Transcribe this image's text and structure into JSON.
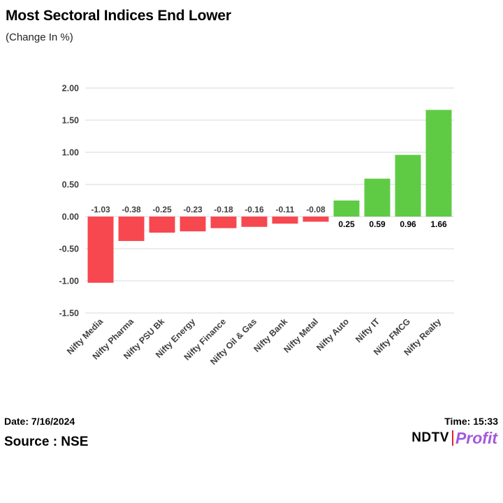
{
  "header": {
    "title": "Most Sectoral Indices End Lower",
    "subtitle": "(Change In %)"
  },
  "footer": {
    "date": "Date: 7/16/2024",
    "source": "Source : NSE",
    "time": "Time: 15:33",
    "logo_ndtv": "NDTV",
    "logo_profit": "Profit"
  },
  "colors": {
    "negative": "#f7474f",
    "positive": "#5fcb45",
    "grid": "#d9d9d9",
    "logo_accent": "#a35ad8"
  },
  "chart_data": {
    "type": "bar",
    "title": "Most Sectoral Indices End Lower",
    "ylabel": "(Change In %)",
    "xlabel": "",
    "categories": [
      "Nifty Media",
      "Nifty Pharma",
      "Nifty PSU Bk",
      "Nifty Energy",
      "Nifty Finance",
      "Nifty Oil & Gas",
      "Nifty Bank",
      "Nifty Metal",
      "Nifty Auto",
      "Nifty IT",
      "Nifty FMCG",
      "Nifty Realty"
    ],
    "values": [
      -1.03,
      -0.38,
      -0.25,
      -0.23,
      -0.18,
      -0.16,
      -0.11,
      -0.08,
      0.25,
      0.59,
      0.96,
      1.66
    ],
    "value_labels": [
      "-1.03",
      "-0.38",
      "-0.25",
      "-0.23",
      "-0.18",
      "-0.16",
      "-0.11",
      "-0.08",
      "0.25",
      "0.59",
      "0.96",
      "1.66"
    ],
    "yticks": [
      "2.00",
      "1.50",
      "1.00",
      "0.50",
      "0.00",
      "-0.50",
      "-1.00",
      "-1.50"
    ],
    "ylim": [
      -1.5,
      2.0
    ],
    "grid": true
  }
}
